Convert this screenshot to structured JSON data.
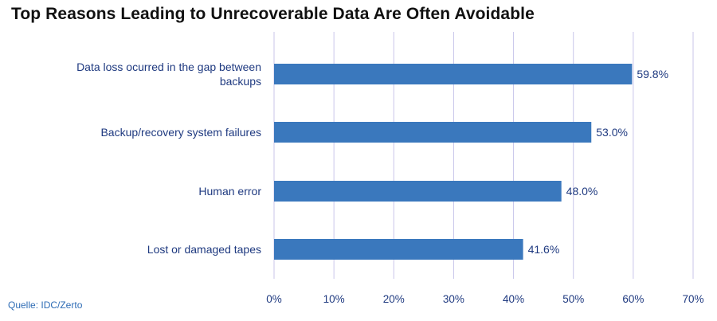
{
  "chart_data": {
    "type": "bar",
    "orientation": "horizontal",
    "title": "Top Reasons Leading to Unrecoverable Data Are Often Avoidable",
    "categories": [
      [
        "Data loss ocurred in the gap between",
        "backups"
      ],
      [
        "Backup/recovery system failures"
      ],
      [
        "Human error"
      ],
      [
        "Lost or damaged tapes"
      ]
    ],
    "values": [
      59.8,
      53.0,
      48.0,
      41.6
    ],
    "data_labels": [
      "59.8%",
      "53.0%",
      "48.0%",
      "41.6%"
    ],
    "xlim": [
      0,
      70
    ],
    "x_ticks": [
      0,
      10,
      20,
      30,
      40,
      50,
      60,
      70
    ],
    "x_tick_labels": [
      "0%",
      "10%",
      "20%",
      "30%",
      "40%",
      "50%",
      "60%",
      "70%"
    ],
    "grid": "vertical",
    "bar_color": "#3a78bd",
    "grid_color": "#c9c6ea",
    "label_color": "#1f3a80"
  },
  "source": "Quelle: IDC/Zerto"
}
